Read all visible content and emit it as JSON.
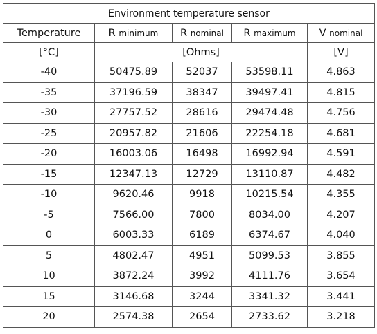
{
  "table": {
    "title": "Environment temperature sensor",
    "header": {
      "temperature": "Temperature",
      "r_min": {
        "main": "R",
        "sub": "minimum"
      },
      "r_nom": {
        "main": "R",
        "sub": "nominal"
      },
      "r_max": {
        "main": "R",
        "sub": "maximum"
      },
      "v_nom": {
        "main": "V",
        "sub": "nominal"
      }
    },
    "units": {
      "temperature": "[°C]",
      "resistance": "[Ohms]",
      "voltage": "[V]"
    },
    "rows": [
      {
        "t": "-40",
        "rmin": "50475.89",
        "rnom": "52037",
        "rmax": "53598.11",
        "v": "4.863"
      },
      {
        "t": "-35",
        "rmin": "37196.59",
        "rnom": "38347",
        "rmax": "39497.41",
        "v": "4.815"
      },
      {
        "t": "-30",
        "rmin": "27757.52",
        "rnom": "28616",
        "rmax": "29474.48",
        "v": "4.756"
      },
      {
        "t": "-25",
        "rmin": "20957.82",
        "rnom": "21606",
        "rmax": "22254.18",
        "v": "4.681"
      },
      {
        "t": "-20",
        "rmin": "16003.06",
        "rnom": "16498",
        "rmax": "16992.94",
        "v": "4.591"
      },
      {
        "t": "-15",
        "rmin": "12347.13",
        "rnom": "12729",
        "rmax": "13110.87",
        "v": "4.482"
      },
      {
        "t": "-10",
        "rmin": "9620.46",
        "rnom": "9918",
        "rmax": "10215.54",
        "v": "4.355"
      },
      {
        "t": "-5",
        "rmin": "7566.00",
        "rnom": "7800",
        "rmax": "8034.00",
        "v": "4.207"
      },
      {
        "t": "0",
        "rmin": "6003.33",
        "rnom": "6189",
        "rmax": "6374.67",
        "v": "4.040"
      },
      {
        "t": "5",
        "rmin": "4802.47",
        "rnom": "4951",
        "rmax": "5099.53",
        "v": "3.855"
      },
      {
        "t": "10",
        "rmin": "3872.24",
        "rnom": "3992",
        "rmax": "4111.76",
        "v": "3.654"
      },
      {
        "t": "15",
        "rmin": "3146.68",
        "rnom": "3244",
        "rmax": "3341.32",
        "v": "3.441"
      },
      {
        "t": "20",
        "rmin": "2574.38",
        "rnom": "2654",
        "rmax": "2733.62",
        "v": "3.218"
      }
    ]
  }
}
